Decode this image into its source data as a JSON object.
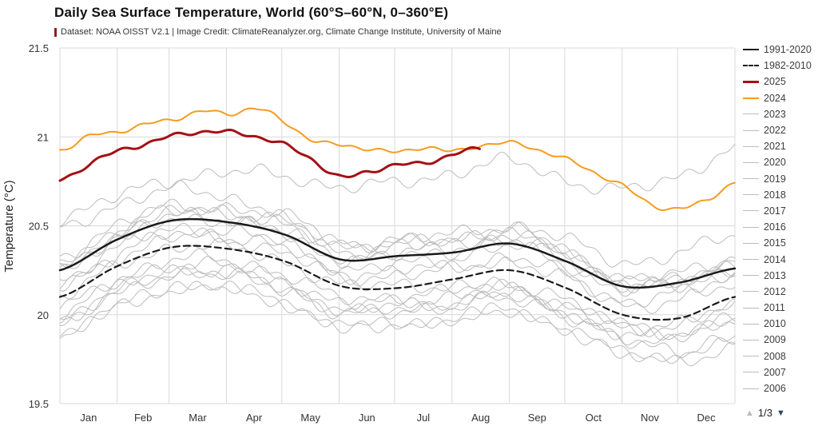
{
  "header": {
    "title": "Daily Sea Surface Temperature, World (60°S–60°N, 0–360°E)",
    "subtitle": "Dataset: NOAA OISST V2.1 | Image Credit: ClimateReanalyzer.org, Climate Change Institute, University of Maine"
  },
  "pagination": {
    "up_symbol": "▲",
    "label": "1/3",
    "down_symbol": "▼"
  },
  "chart_data": {
    "type": "line",
    "title": "Daily Sea Surface Temperature, World (60°S–60°N, 0–360°E)",
    "xlabel": "",
    "ylabel": "Temperature (°C)",
    "ylim": [
      19.5,
      21.5
    ],
    "yticks": [
      19.5,
      20,
      20.5,
      21,
      21.5
    ],
    "ytick_labels": [
      "19.5",
      "20",
      "20.5",
      "21",
      "21.5"
    ],
    "categories": [
      "Jan",
      "Feb",
      "Mar",
      "Apr",
      "May",
      "Jun",
      "Jul",
      "Aug",
      "Sep",
      "Oct",
      "Nov",
      "Dec"
    ],
    "month_days": [
      0,
      31,
      59,
      90,
      120,
      151,
      181,
      212,
      243,
      273,
      304,
      334,
      365
    ],
    "grid": true,
    "legend_position": "right",
    "colors": {
      "mean": "#1a1a1a",
      "y2025": "#a50f15",
      "y2024": "#f49c20",
      "gray_years": "#bcbcbc",
      "grid": "#d9d9d9"
    },
    "series": [
      {
        "name": "1991-2020",
        "role": "mean",
        "style": "solid",
        "color": "#1a1a1a",
        "width": 2.5,
        "values": [
          20.25,
          20.42,
          20.53,
          20.52,
          20.45,
          20.31,
          20.33,
          20.35,
          20.4,
          20.3,
          20.16,
          20.18,
          20.26
        ]
      },
      {
        "name": "1982-2010",
        "role": "mean",
        "style": "dashed",
        "color": "#1a1a1a",
        "width": 2.2,
        "values": [
          20.1,
          20.27,
          20.38,
          20.37,
          20.3,
          20.16,
          20.15,
          20.2,
          20.25,
          20.15,
          20.0,
          19.98,
          20.1
        ]
      },
      {
        "name": "2025",
        "role": "highlight",
        "style": "solid",
        "color": "#a50f15",
        "width": 3,
        "end_day": 227,
        "values": [
          20.76,
          20.84,
          20.91,
          20.96,
          21.01,
          21.03,
          21.02,
          21.0,
          20.96,
          20.88,
          20.77,
          20.8,
          20.84,
          20.86,
          20.9,
          20.93
        ]
      },
      {
        "name": "2024",
        "role": "highlight",
        "style": "solid",
        "color": "#f49c20",
        "width": 2,
        "values": [
          20.93,
          21.0,
          21.02,
          21.07,
          21.1,
          21.15,
          21.12,
          21.16,
          21.08,
          20.99,
          20.95,
          20.93,
          20.91,
          20.95,
          20.92,
          20.95,
          20.96,
          20.93,
          20.88,
          20.8,
          20.72,
          20.62,
          20.6,
          20.65,
          20.74
        ]
      },
      {
        "name": "2023",
        "role": "year",
        "style": "solid",
        "color": "#bcbcbc",
        "width": 1,
        "values": [
          20.55,
          20.66,
          20.76,
          20.8,
          20.78,
          20.72,
          20.74,
          20.8,
          20.86,
          20.76,
          20.7,
          20.78,
          20.94
        ]
      },
      {
        "name": "2022",
        "role": "year",
        "style": "solid",
        "color": "#bcbcbc",
        "width": 1,
        "values": [
          20.26,
          20.43,
          20.54,
          20.52,
          20.45,
          20.31,
          20.33,
          20.36,
          20.41,
          20.31,
          20.17,
          20.2,
          20.3
        ]
      },
      {
        "name": "2021",
        "role": "year",
        "style": "solid",
        "color": "#bcbcbc",
        "width": 1,
        "values": [
          20.2,
          20.37,
          20.48,
          20.47,
          20.4,
          20.26,
          20.28,
          20.32,
          20.38,
          20.28,
          20.14,
          20.16,
          20.26
        ]
      },
      {
        "name": "2020",
        "role": "year",
        "style": "solid",
        "color": "#bcbcbc",
        "width": 1,
        "values": [
          20.33,
          20.5,
          20.61,
          20.6,
          20.53,
          20.39,
          20.41,
          20.43,
          20.48,
          20.36,
          20.2,
          20.18,
          20.24
        ]
      },
      {
        "name": "2019",
        "role": "year",
        "style": "solid",
        "color": "#bcbcbc",
        "width": 1,
        "values": [
          20.3,
          20.47,
          20.58,
          20.57,
          20.5,
          20.36,
          20.38,
          20.4,
          20.45,
          20.35,
          20.21,
          20.23,
          20.33
        ]
      },
      {
        "name": "2018",
        "role": "year",
        "style": "solid",
        "color": "#bcbcbc",
        "width": 1,
        "values": [
          20.17,
          20.34,
          20.45,
          20.44,
          20.37,
          20.23,
          20.25,
          20.27,
          20.32,
          20.22,
          20.08,
          20.12,
          20.22
        ]
      },
      {
        "name": "2017",
        "role": "year",
        "style": "solid",
        "color": "#bcbcbc",
        "width": 1,
        "values": [
          20.27,
          20.44,
          20.55,
          20.54,
          20.47,
          20.33,
          20.35,
          20.37,
          20.42,
          20.32,
          20.18,
          20.2,
          20.28
        ]
      },
      {
        "name": "2016",
        "role": "year",
        "style": "solid",
        "color": "#bcbcbc",
        "width": 1,
        "values": [
          20.48,
          20.62,
          20.7,
          20.66,
          20.56,
          20.4,
          20.4,
          20.42,
          20.46,
          20.34,
          20.18,
          20.18,
          20.25
        ]
      },
      {
        "name": "2015",
        "role": "year",
        "style": "solid",
        "color": "#bcbcbc",
        "width": 1,
        "values": [
          20.25,
          20.44,
          20.57,
          20.58,
          20.52,
          20.4,
          20.42,
          20.45,
          20.5,
          20.42,
          20.3,
          20.34,
          20.45
        ]
      },
      {
        "name": "2014",
        "role": "year",
        "style": "solid",
        "color": "#bcbcbc",
        "width": 1,
        "values": [
          20.15,
          20.32,
          20.43,
          20.42,
          20.35,
          20.21,
          20.23,
          20.25,
          20.3,
          20.2,
          20.06,
          20.08,
          20.16
        ]
      },
      {
        "name": "2013",
        "role": "year",
        "style": "solid",
        "color": "#bcbcbc",
        "width": 1,
        "values": [
          20.03,
          20.2,
          20.31,
          20.3,
          20.23,
          20.09,
          20.11,
          20.13,
          20.18,
          20.08,
          19.94,
          19.96,
          20.04
        ]
      },
      {
        "name": "2012",
        "role": "year",
        "style": "solid",
        "color": "#bcbcbc",
        "width": 1,
        "values": [
          19.95,
          20.12,
          20.23,
          20.22,
          20.15,
          20.01,
          20.03,
          20.05,
          20.1,
          20.0,
          19.86,
          19.88,
          19.97
        ]
      },
      {
        "name": "2011",
        "role": "year",
        "style": "solid",
        "color": "#bcbcbc",
        "width": 1,
        "values": [
          19.87,
          20.04,
          20.15,
          20.14,
          20.07,
          19.93,
          19.95,
          19.97,
          20.02,
          19.92,
          19.78,
          19.78,
          19.87
        ]
      },
      {
        "name": "2010",
        "role": "year",
        "style": "solid",
        "color": "#bcbcbc",
        "width": 1,
        "values": [
          20.1,
          20.27,
          20.38,
          20.37,
          20.3,
          20.16,
          20.18,
          20.15,
          20.15,
          20.05,
          19.95,
          19.9,
          19.95
        ]
      },
      {
        "name": "2009",
        "role": "year",
        "style": "solid",
        "color": "#bcbcbc",
        "width": 1,
        "values": [
          20.0,
          20.17,
          20.28,
          20.27,
          20.2,
          20.06,
          20.08,
          20.1,
          20.15,
          20.05,
          19.91,
          19.95,
          20.05
        ]
      },
      {
        "name": "2008",
        "role": "year",
        "style": "solid",
        "color": "#bcbcbc",
        "width": 1,
        "values": [
          19.87,
          20.04,
          20.15,
          20.14,
          20.07,
          19.93,
          19.95,
          19.97,
          20.02,
          19.92,
          19.78,
          19.75,
          19.8
        ]
      },
      {
        "name": "2007",
        "role": "year",
        "style": "solid",
        "color": "#bcbcbc",
        "width": 1,
        "values": [
          19.95,
          20.12,
          20.23,
          20.22,
          20.15,
          20.01,
          20.03,
          20.05,
          20.1,
          20.0,
          19.86,
          19.8,
          19.85
        ]
      },
      {
        "name": "2006",
        "role": "year",
        "style": "solid",
        "color": "#bcbcbc",
        "width": 1,
        "values": [
          19.97,
          20.14,
          20.25,
          20.24,
          20.17,
          20.03,
          20.05,
          20.07,
          20.12,
          20.02,
          19.88,
          19.9,
          19.98
        ]
      }
    ]
  }
}
